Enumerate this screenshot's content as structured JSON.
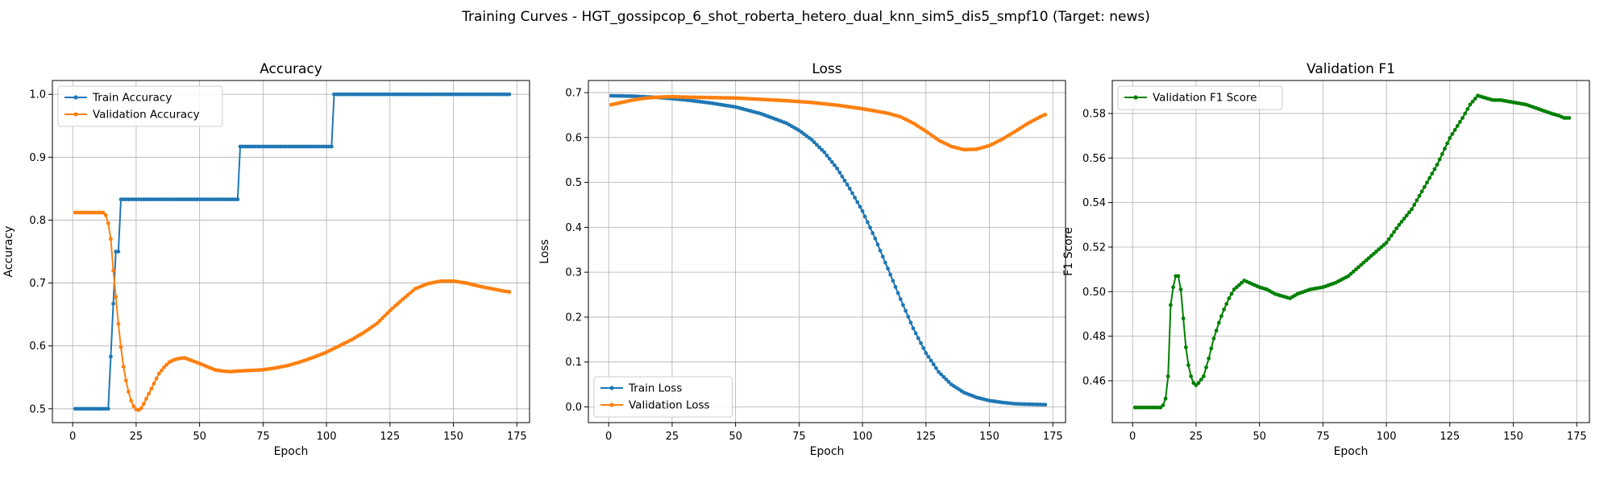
{
  "figure": {
    "suptitle": "Training Curves - HGT_gossipcop_6_shot_roberta_hetero_dual_knn_sim5_dis5_smpf10 (Target: news)"
  },
  "chart_data": [
    {
      "type": "line",
      "title": "Accuracy",
      "xlabel": "Epoch",
      "ylabel": "Accuracy",
      "xlim": [
        -8,
        180
      ],
      "ylim": [
        0.478,
        1.022
      ],
      "xticks": [
        0,
        25,
        50,
        75,
        100,
        125,
        150,
        175
      ],
      "yticks": [
        0.5,
        0.6,
        0.7,
        0.8,
        0.9,
        1.0
      ],
      "ytick_labels": [
        "0.5",
        "0.6",
        "0.7",
        "0.8",
        "0.9",
        "1.0"
      ],
      "grid": true,
      "legend": "upper-left",
      "series": [
        {
          "name": "Train Accuracy",
          "color": "#1f77b4",
          "points": [
            [
              1,
              0.5
            ],
            [
              14,
              0.5
            ],
            [
              15,
              0.583
            ],
            [
              16,
              0.667
            ],
            [
              17,
              0.75
            ],
            [
              18,
              0.75
            ],
            [
              19,
              0.833
            ],
            [
              65,
              0.833
            ],
            [
              66,
              0.917
            ],
            [
              102,
              0.917
            ],
            [
              103,
              1.0
            ],
            [
              172,
              1.0
            ]
          ]
        },
        {
          "name": "Validation Accuracy",
          "color": "#ff7f0e",
          "points": [
            [
              1,
              0.812
            ],
            [
              12,
              0.812
            ],
            [
              13,
              0.808
            ],
            [
              14,
              0.795
            ],
            [
              15,
              0.77
            ],
            [
              16,
              0.72
            ],
            [
              17,
              0.678
            ],
            [
              18,
              0.635
            ],
            [
              19,
              0.598
            ],
            [
              20,
              0.567
            ],
            [
              21,
              0.545
            ],
            [
              22,
              0.527
            ],
            [
              23,
              0.513
            ],
            [
              24,
              0.504
            ],
            [
              25,
              0.499
            ],
            [
              26,
              0.498
            ],
            [
              27,
              0.501
            ],
            [
              28,
              0.508
            ],
            [
              30,
              0.524
            ],
            [
              32,
              0.54
            ],
            [
              34,
              0.556
            ],
            [
              36,
              0.566
            ],
            [
              38,
              0.574
            ],
            [
              40,
              0.578
            ],
            [
              42,
              0.58
            ],
            [
              44,
              0.581
            ],
            [
              46,
              0.578
            ],
            [
              48,
              0.575
            ],
            [
              50,
              0.572
            ],
            [
              53,
              0.567
            ],
            [
              56,
              0.562
            ],
            [
              59,
              0.56
            ],
            [
              62,
              0.559
            ],
            [
              65,
              0.56
            ],
            [
              70,
              0.561
            ],
            [
              75,
              0.562
            ],
            [
              80,
              0.565
            ],
            [
              85,
              0.569
            ],
            [
              90,
              0.575
            ],
            [
              95,
              0.582
            ],
            [
              100,
              0.59
            ],
            [
              105,
              0.6
            ],
            [
              110,
              0.61
            ],
            [
              115,
              0.622
            ],
            [
              120,
              0.636
            ],
            [
              125,
              0.656
            ],
            [
              130,
              0.674
            ],
            [
              135,
              0.691
            ],
            [
              140,
              0.699
            ],
            [
              145,
              0.703
            ],
            [
              150,
              0.703
            ],
            [
              155,
              0.7
            ],
            [
              160,
              0.695
            ],
            [
              165,
              0.691
            ],
            [
              170,
              0.687
            ],
            [
              172,
              0.686
            ]
          ]
        }
      ]
    },
    {
      "type": "line",
      "title": "Loss",
      "xlabel": "Epoch",
      "ylabel": "Loss",
      "xlim": [
        -8,
        180
      ],
      "ylim": [
        -0.035,
        0.727
      ],
      "xticks": [
        0,
        25,
        50,
        75,
        100,
        125,
        150,
        175
      ],
      "yticks": [
        0.0,
        0.1,
        0.2,
        0.3,
        0.4,
        0.5,
        0.6,
        0.7
      ],
      "ytick_labels": [
        "0.0",
        "0.1",
        "0.2",
        "0.3",
        "0.4",
        "0.5",
        "0.6",
        "0.7"
      ],
      "grid": true,
      "legend": "lower-left",
      "series": [
        {
          "name": "Train Loss",
          "color": "#1f77b4",
          "points": [
            [
              1,
              0.693
            ],
            [
              10,
              0.692
            ],
            [
              20,
              0.689
            ],
            [
              30,
              0.684
            ],
            [
              40,
              0.677
            ],
            [
              50,
              0.668
            ],
            [
              60,
              0.653
            ],
            [
              70,
              0.632
            ],
            [
              75,
              0.616
            ],
            [
              80,
              0.595
            ],
            [
              85,
              0.567
            ],
            [
              90,
              0.531
            ],
            [
              95,
              0.486
            ],
            [
              100,
              0.436
            ],
            [
              105,
              0.375
            ],
            [
              110,
              0.308
            ],
            [
              115,
              0.24
            ],
            [
              120,
              0.175
            ],
            [
              125,
              0.12
            ],
            [
              130,
              0.078
            ],
            [
              135,
              0.05
            ],
            [
              140,
              0.032
            ],
            [
              145,
              0.021
            ],
            [
              150,
              0.014
            ],
            [
              155,
              0.01
            ],
            [
              160,
              0.007
            ],
            [
              165,
              0.006
            ],
            [
              172,
              0.005
            ]
          ]
        },
        {
          "name": "Validation Loss",
          "color": "#ff7f0e",
          "points": [
            [
              1,
              0.673
            ],
            [
              5,
              0.678
            ],
            [
              10,
              0.684
            ],
            [
              15,
              0.688
            ],
            [
              20,
              0.69
            ],
            [
              25,
              0.691
            ],
            [
              30,
              0.69
            ],
            [
              40,
              0.689
            ],
            [
              50,
              0.688
            ],
            [
              60,
              0.685
            ],
            [
              70,
              0.682
            ],
            [
              80,
              0.678
            ],
            [
              90,
              0.672
            ],
            [
              100,
              0.664
            ],
            [
              110,
              0.654
            ],
            [
              115,
              0.646
            ],
            [
              120,
              0.632
            ],
            [
              125,
              0.614
            ],
            [
              130,
              0.594
            ],
            [
              135,
              0.58
            ],
            [
              140,
              0.573
            ],
            [
              145,
              0.574
            ],
            [
              150,
              0.582
            ],
            [
              155,
              0.596
            ],
            [
              160,
              0.613
            ],
            [
              165,
              0.631
            ],
            [
              170,
              0.646
            ],
            [
              172,
              0.651
            ]
          ]
        }
      ]
    },
    {
      "type": "line",
      "title": "Validation F1",
      "xlabel": "Epoch",
      "ylabel": "F1 Score",
      "xlim": [
        -8,
        180
      ],
      "ylim": [
        0.4412,
        0.5948
      ],
      "xticks": [
        0,
        25,
        50,
        75,
        100,
        125,
        150,
        175
      ],
      "yticks": [
        0.46,
        0.48,
        0.5,
        0.52,
        0.54,
        0.56,
        0.58
      ],
      "ytick_labels": [
        "0.46",
        "0.48",
        "0.50",
        "0.52",
        "0.54",
        "0.56",
        "0.58"
      ],
      "grid": true,
      "legend": "upper-left",
      "series": [
        {
          "name": "Validation F1 Score",
          "color": "#008000",
          "points": [
            [
              1,
              0.448
            ],
            [
              11,
              0.448
            ],
            [
              12,
              0.449
            ],
            [
              13,
              0.452
            ],
            [
              14,
              0.462
            ],
            [
              15,
              0.494
            ],
            [
              16,
              0.502
            ],
            [
              17,
              0.507
            ],
            [
              18,
              0.507
            ],
            [
              19,
              0.501
            ],
            [
              20,
              0.488
            ],
            [
              21,
              0.475
            ],
            [
              22,
              0.467
            ],
            [
              23,
              0.462
            ],
            [
              24,
              0.459
            ],
            [
              25,
              0.458
            ],
            [
              26,
              0.459
            ],
            [
              28,
              0.462
            ],
            [
              30,
              0.47
            ],
            [
              32,
              0.479
            ],
            [
              34,
              0.486
            ],
            [
              36,
              0.492
            ],
            [
              38,
              0.497
            ],
            [
              40,
              0.501
            ],
            [
              42,
              0.503
            ],
            [
              44,
              0.505
            ],
            [
              46,
              0.504
            ],
            [
              48,
              0.503
            ],
            [
              50,
              0.502
            ],
            [
              53,
              0.501
            ],
            [
              56,
              0.499
            ],
            [
              59,
              0.498
            ],
            [
              62,
              0.497
            ],
            [
              65,
              0.499
            ],
            [
              70,
              0.501
            ],
            [
              75,
              0.502
            ],
            [
              80,
              0.504
            ],
            [
              85,
              0.507
            ],
            [
              90,
              0.512
            ],
            [
              95,
              0.517
            ],
            [
              100,
              0.522
            ],
            [
              105,
              0.53
            ],
            [
              110,
              0.537
            ],
            [
              115,
              0.547
            ],
            [
              120,
              0.557
            ],
            [
              125,
              0.569
            ],
            [
              130,
              0.578
            ],
            [
              133,
              0.584
            ],
            [
              136,
              0.588
            ],
            [
              139,
              0.587
            ],
            [
              142,
              0.586
            ],
            [
              145,
              0.586
            ],
            [
              150,
              0.585
            ],
            [
              155,
              0.584
            ],
            [
              160,
              0.582
            ],
            [
              165,
              0.58
            ],
            [
              168,
              0.579
            ],
            [
              170,
              0.578
            ],
            [
              172,
              0.578
            ]
          ]
        }
      ]
    }
  ]
}
